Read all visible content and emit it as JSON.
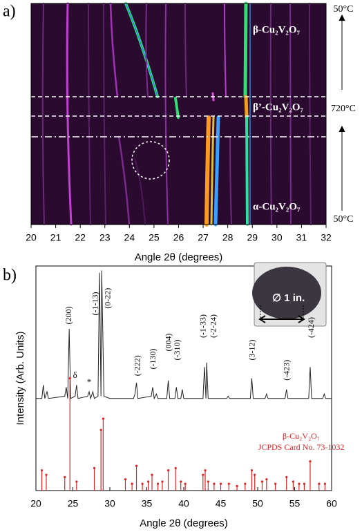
{
  "chart_data": [
    {
      "type": "image",
      "panel_label": "a)",
      "xlabel": "Angle 2θ (degrees)",
      "xlim": [
        20,
        32
      ],
      "xticks": [
        20,
        21,
        22,
        23,
        24,
        25,
        26,
        27,
        28,
        29,
        30,
        31,
        32
      ],
      "annotations": [
        "β-Cu₂V₂O₇",
        "β’-Cu₂V₂O₇",
        "α-Cu₂V₂O₇",
        "50°C",
        "720°C",
        "50°C"
      ]
    },
    {
      "type": "line",
      "panel_label": "b)",
      "xlabel": "Angle 2θ (degrees)",
      "ylabel": "Intensity (Arb. Units)",
      "xlim": [
        20,
        60
      ],
      "ylim": [
        0,
        100
      ],
      "xticks": [
        20,
        25,
        30,
        35,
        40,
        45,
        50,
        55,
        60
      ],
      "inset_label": "∅ 1 in.",
      "series": [
        {
          "color": "#222222",
          "x": [
            20.0,
            20.8,
            21.0,
            21.2,
            21.5,
            21.7,
            23.9,
            24.1,
            24.3,
            24.5,
            24.7,
            25.3,
            25.5,
            25.7,
            27.0,
            27.2,
            27.4,
            27.7,
            27.9,
            28.4,
            28.6,
            28.8,
            28.9,
            29.2,
            30.0,
            33.2,
            33.4,
            33.6,
            33.8,
            35.6,
            35.8,
            36.0,
            36.3,
            36.5,
            37.7,
            37.9,
            38.1,
            38.8,
            39.0,
            39.2,
            39.6,
            39.8,
            40.0,
            42.6,
            42.8,
            43.0,
            43.1,
            43.3,
            45.8,
            46.0,
            46.2,
            49.0,
            49.2,
            49.4,
            51.0,
            51.2,
            51.4,
            53.7,
            53.9,
            54.1,
            56.9,
            57.1,
            57.3,
            58.8,
            59.0,
            59.2,
            60.0
          ],
          "values": [
            41,
            41,
            47,
            41,
            44,
            41,
            42,
            46,
            41,
            72,
            41,
            42,
            47,
            41,
            42,
            44,
            41,
            44,
            41,
            42,
            97,
            42,
            98,
            42,
            41,
            41,
            43,
            48,
            41,
            42,
            46,
            41,
            43,
            41,
            41,
            49,
            41,
            41,
            46,
            41,
            41,
            45,
            41,
            41,
            55,
            41,
            57,
            41,
            41,
            42,
            41,
            41,
            50,
            41,
            41,
            43,
            41,
            41,
            45,
            41,
            41,
            55,
            41,
            41,
            43,
            41,
            41
          ]
        },
        {
          "name": "β-Cu₂V₂O₇",
          "caption": "JCPDS Card No. 73-1032",
          "style": "sticks",
          "color": "#e02020",
          "x": [
            20.8,
            21.4,
            23.9,
            24.6,
            25.5,
            27.9,
            28.8,
            29.1,
            32.1,
            33.0,
            33.6,
            34.4,
            35.2,
            35.7,
            36.5,
            37.1,
            37.9,
            38.9,
            39.6,
            40.2,
            42.6,
            42.9,
            43.3,
            44.1,
            45.0,
            46.1,
            47.2,
            48.3,
            49.2,
            49.6,
            50.6,
            51.2,
            52.4,
            53.9,
            54.8,
            55.6,
            56.3,
            57.1,
            58.3,
            59.1
          ],
          "values": [
            9,
            7,
            6,
            50,
            4,
            10,
            27,
            32,
            5,
            3,
            11,
            3,
            4,
            7,
            3,
            4,
            9,
            10,
            4,
            3,
            7,
            9,
            4,
            3,
            3,
            3,
            2,
            3,
            9,
            7,
            4,
            5,
            3,
            6,
            4,
            3,
            3,
            13,
            3,
            3
          ]
        }
      ],
      "annotations": [
        {
          "text": "(200)",
          "x": 24.5,
          "y": 74,
          "rotated": true
        },
        {
          "text": "δ",
          "x": 25.3,
          "y": 51,
          "rotated": false
        },
        {
          "text": "*",
          "x": 27.2,
          "y": 48,
          "rotated": false
        },
        {
          "text": "(-1-13)",
          "x": 28.1,
          "y": 78,
          "rotated": true
        },
        {
          "text": "(0-22)",
          "x": 29.8,
          "y": 81,
          "rotated": true
        },
        {
          "text": "(-222)",
          "x": 33.8,
          "y": 51,
          "rotated": true
        },
        {
          "text": "(-130)",
          "x": 35.9,
          "y": 54,
          "rotated": true
        },
        {
          "text": "(004)",
          "x": 38.0,
          "y": 62,
          "rotated": true
        },
        {
          "text": "(-310)",
          "x": 39.2,
          "y": 58,
          "rotated": true
        },
        {
          "text": "(-1-33)",
          "x": 42.7,
          "y": 68,
          "rotated": true
        },
        {
          "text": "(-2-24)",
          "x": 44.1,
          "y": 68,
          "rotated": true
        },
        {
          "text": "(3-12)",
          "x": 49.3,
          "y": 58,
          "rotated": true
        },
        {
          "text": "(-423)",
          "x": 54.0,
          "y": 49,
          "rotated": true
        },
        {
          "text": "(-424)",
          "x": 57.3,
          "y": 68,
          "rotated": true
        }
      ]
    }
  ]
}
